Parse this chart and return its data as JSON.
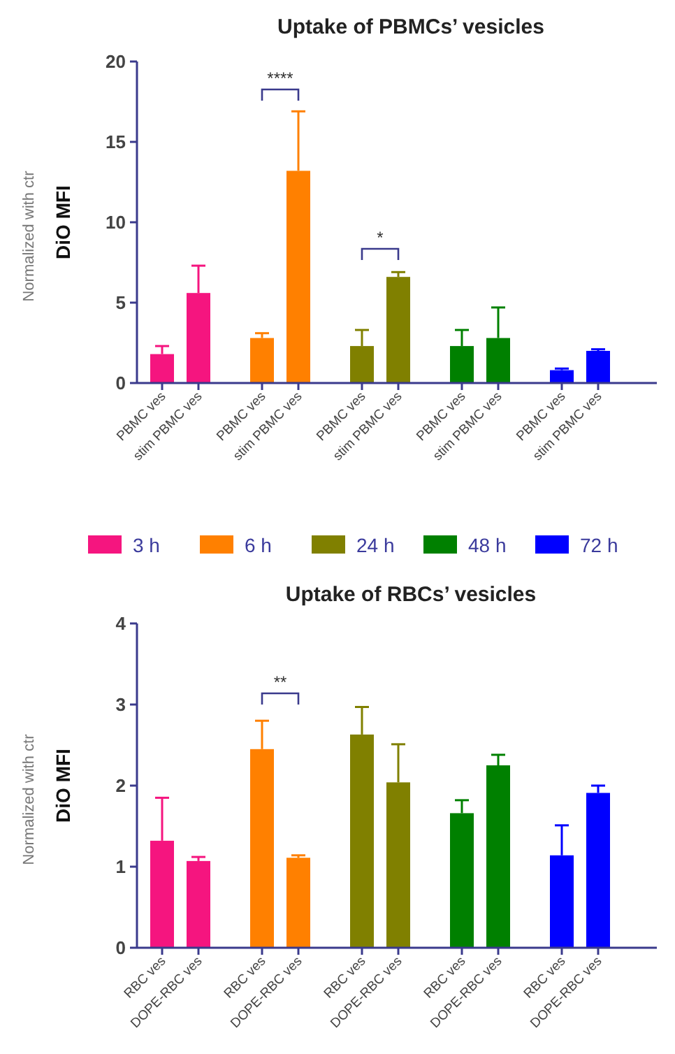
{
  "chart_data": [
    {
      "type": "bar",
      "title": "Uptake of PBMCs’ vesicles",
      "ylabel": "Normalized with ctr\nDiO MFI",
      "categories": [
        "PBMC ves",
        "stim PBMC ves",
        "PBMC ves",
        "stim PBMC ves",
        "PBMC ves",
        "stim PBMC ves",
        "PBMC ves",
        "stim PBMC ves",
        "PBMC ves",
        "stim PBMC ves"
      ],
      "series": [
        {
          "name": "3 h",
          "color": "#f5157f",
          "values": [
            1.8,
            5.6,
            null,
            null,
            null,
            null,
            null,
            null,
            null,
            null
          ],
          "errors": [
            [
              1.8,
              2.3
            ],
            [
              5.6,
              7.3
            ],
            null,
            null,
            null,
            null,
            null,
            null,
            null,
            null
          ]
        },
        {
          "name": "6 h",
          "color": "#ff8000",
          "values": [
            null,
            null,
            2.8,
            13.2,
            null,
            null,
            null,
            null,
            null,
            null
          ],
          "errors": [
            null,
            null,
            [
              2.8,
              3.1
            ],
            [
              13.2,
              16.9
            ],
            null,
            null,
            null,
            null,
            null,
            null
          ]
        },
        {
          "name": "24 h",
          "color": "#808000",
          "values": [
            null,
            null,
            null,
            null,
            2.3,
            6.6,
            null,
            null,
            null,
            null
          ],
          "errors": [
            null,
            null,
            null,
            null,
            [
              2.3,
              3.3
            ],
            [
              6.6,
              6.9
            ],
            null,
            null,
            null,
            null
          ]
        },
        {
          "name": "48 h",
          "color": "#008000",
          "values": [
            null,
            null,
            null,
            null,
            null,
            null,
            2.3,
            2.8,
            null,
            null
          ],
          "errors": [
            null,
            null,
            null,
            null,
            null,
            null,
            [
              2.3,
              3.3
            ],
            [
              2.8,
              4.7
            ],
            null,
            null
          ]
        },
        {
          "name": "72 h",
          "color": "#0000ff",
          "values": [
            null,
            null,
            null,
            null,
            null,
            null,
            null,
            null,
            0.8,
            2.0
          ],
          "errors": [
            null,
            null,
            null,
            null,
            null,
            null,
            null,
            null,
            [
              0.8,
              0.9
            ],
            [
              2.0,
              2.1
            ]
          ]
        }
      ],
      "ylim": [
        0,
        20
      ],
      "yticks": [
        0,
        5,
        10,
        15,
        20
      ],
      "grid": false,
      "legend": "bottom",
      "annotations": [
        "****",
        "*"
      ]
    },
    {
      "type": "bar",
      "title": "Uptake of RBCs’ vesicles",
      "ylabel": "Normalized with ctr\nDiO MFI",
      "categories": [
        "RBC ves",
        "DOPE-RBC ves",
        "RBC ves",
        "DOPE-RBC ves",
        "RBC ves",
        "DOPE-RBC ves",
        "RBC ves",
        "DOPE-RBC ves",
        "RBC ves",
        "DOPE-RBC ves"
      ],
      "series": [
        {
          "color": "#f5157f",
          "values": [
            1.32,
            1.07,
            null,
            null,
            null,
            null,
            null,
            null,
            null,
            null
          ],
          "errors": [
            [
              1.32,
              1.85
            ],
            [
              1.07,
              1.12
            ],
            null,
            null,
            null,
            null,
            null,
            null,
            null,
            null
          ]
        },
        {
          "color": "#ff8000",
          "values": [
            null,
            null,
            2.45,
            1.11,
            null,
            null,
            null,
            null,
            null,
            null
          ],
          "errors": [
            null,
            null,
            [
              2.45,
              2.8
            ],
            [
              1.11,
              1.14
            ],
            null,
            null,
            null,
            null,
            null,
            null
          ]
        },
        {
          "color": "#808000",
          "values": [
            null,
            null,
            null,
            null,
            2.63,
            2.04,
            null,
            null,
            null,
            null
          ],
          "errors": [
            null,
            null,
            null,
            null,
            [
              2.63,
              2.97
            ],
            [
              2.04,
              2.51
            ],
            null,
            null,
            null,
            null
          ]
        },
        {
          "color": "#008000",
          "values": [
            null,
            null,
            null,
            null,
            null,
            null,
            1.66,
            2.25,
            null,
            null
          ],
          "errors": [
            null,
            null,
            null,
            null,
            null,
            null,
            [
              1.66,
              1.82
            ],
            [
              2.25,
              2.38
            ],
            null,
            null
          ]
        },
        {
          "color": "#0000ff",
          "values": [
            null,
            null,
            null,
            null,
            null,
            null,
            null,
            null,
            1.14,
            1.91
          ],
          "errors": [
            null,
            null,
            null,
            null,
            null,
            null,
            null,
            null,
            [
              1.14,
              1.51
            ],
            [
              1.91,
              2.0
            ]
          ]
        }
      ],
      "ylim": [
        0,
        4
      ],
      "yticks": [
        0,
        1,
        2,
        3,
        4
      ],
      "grid": false,
      "annotations": [
        "**"
      ]
    }
  ]
}
